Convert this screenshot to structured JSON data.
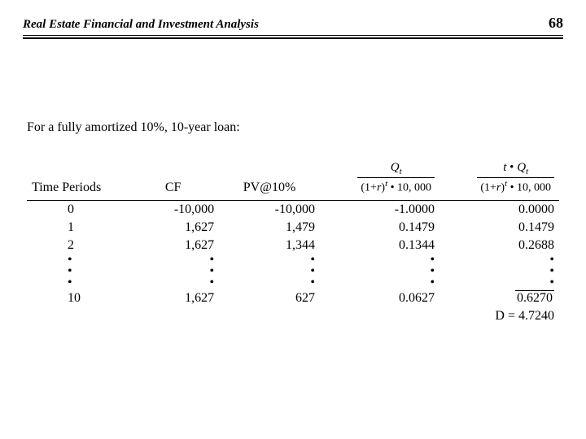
{
  "header": {
    "title": "Real Estate Financial and Investment Analysis",
    "page_number": "68"
  },
  "intro": "For a fully amortized 10%, 10-year loan:",
  "columns": {
    "c0": "Time Periods",
    "c1": "CF",
    "c2": "PV@10%"
  },
  "formula": {
    "num1_var": "Q",
    "num1_sub": "t",
    "num2_prefix": "t",
    "num2_var": "Q",
    "num2_sub": "t",
    "den_base": "(1+",
    "den_r": "r",
    "den_close": ")",
    "den_exp": "t",
    "den_tail": " • 10, 000"
  },
  "rows": [
    {
      "t": "0",
      "cf": "-10,000",
      "pv": "-10,000",
      "q": "-1.0000",
      "tq": "0.0000"
    },
    {
      "t": "1",
      "cf": "1,627",
      "pv": "1,479",
      "q": "0.1479",
      "tq": "0.1479"
    },
    {
      "t": "2",
      "cf": "1,627",
      "pv": "1,344",
      "q": "0.1344",
      "tq": "0.2688"
    },
    {
      "t": "10",
      "cf": "1,627",
      "pv": "627",
      "q": "0.0627",
      "tq": "0.6270"
    }
  ],
  "dot": "•",
  "result": "D = 4.7240"
}
